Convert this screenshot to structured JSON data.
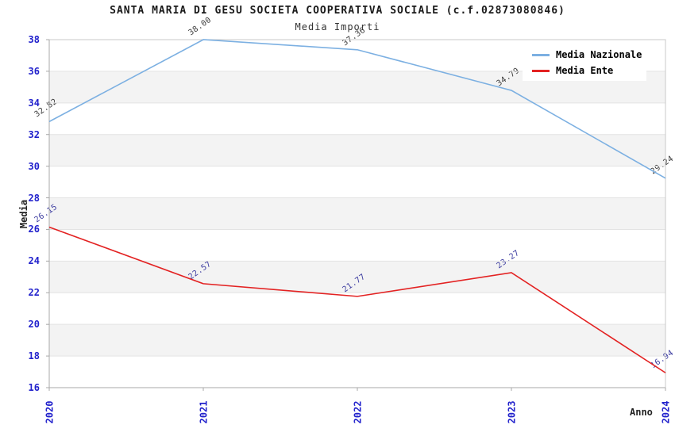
{
  "chart_data": {
    "type": "line",
    "title": "SANTA MARIA DI GESU SOCIETA COOPERATIVA SOCIALE (c.f.02873080846)",
    "subtitle": "Media Importi",
    "xlabel": "Anno",
    "ylabel": "Media",
    "categories": [
      "2020",
      "2021",
      "2022",
      "2023",
      "2024"
    ],
    "series": [
      {
        "name": "Media Nazionale",
        "color": "#7CB0E2",
        "label_color": "#3A3A3A",
        "values": [
          32.82,
          38.0,
          37.36,
          34.79,
          29.24
        ],
        "point_labels": [
          "32.82",
          "38.00",
          "37.36",
          "34.79",
          "29.24"
        ]
      },
      {
        "name": "Media Ente",
        "color": "#E32222",
        "label_color": "#3C3CA0",
        "values": [
          26.15,
          22.57,
          21.77,
          23.27,
          16.94
        ],
        "point_labels": [
          "26.15",
          "22.57",
          "21.77",
          "23.27",
          "16.94"
        ]
      }
    ],
    "ylim": [
      16,
      38
    ],
    "ytick_step": 2,
    "ytick_labels": [
      "38",
      "36",
      "34",
      "32",
      "30",
      "28",
      "26",
      "24",
      "22",
      "20",
      "18",
      "16"
    ],
    "grid": "horizontal-alternating-bands",
    "legend_position": "top-right",
    "colors": {
      "tick_label": "#2222CC",
      "band_gray": "#F3F3F3",
      "band_white": "#FFFFFF",
      "gridline": "#E3E3E3",
      "plot_border": "#C8C8C8",
      "axis_line": "#A8A8A8",
      "background": "#FFFFFF"
    }
  }
}
